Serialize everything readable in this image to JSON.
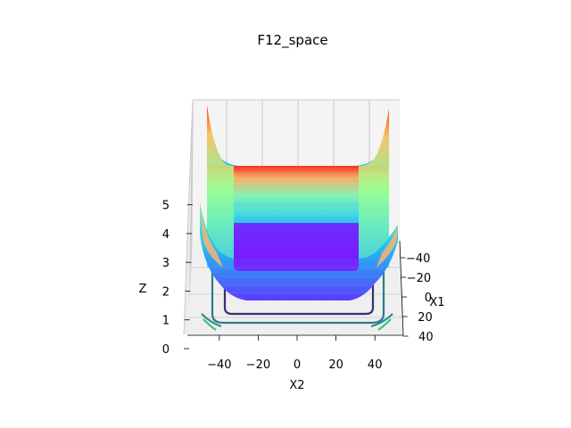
{
  "chart_data": {
    "type": "surface3d",
    "title": "F12_space",
    "xlabel": "X1",
    "ylabel": "X2",
    "zlabel": "Z",
    "x1_ticks": [
      -40,
      -20,
      0,
      20,
      40
    ],
    "x2_ticks": [
      -40,
      -20,
      0,
      20,
      40
    ],
    "z_ticks": [
      0,
      1,
      2,
      3,
      4,
      5
    ],
    "x1_range": [
      -50,
      50
    ],
    "x2_range": [
      -50,
      50
    ],
    "z_range": [
      0,
      5.3
    ],
    "grid": true,
    "colormap": "rainbow",
    "colors": {
      "low": "#8000ff",
      "mid_low": "#1ec3f0",
      "mid": "#80ffb4",
      "high": "#ff2a14",
      "contour_inner": "#3a2f7a",
      "contour_mid": "#2b7b8e",
      "contour_outer": "#3cc07a"
    },
    "contour_levels": [
      1,
      2,
      3
    ]
  }
}
